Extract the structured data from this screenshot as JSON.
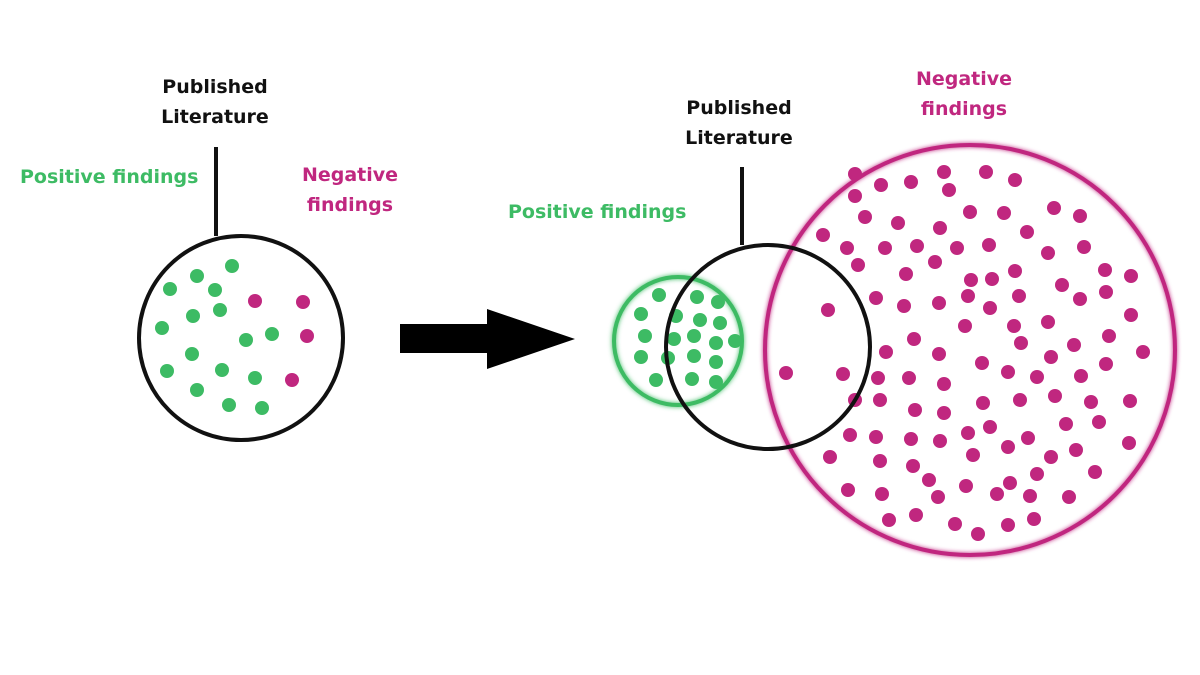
{
  "colors": {
    "positive": "#3dbb64",
    "negative": "#c0277f",
    "published_outline": "#111111",
    "arrow": "#000000",
    "background": "#ffffff"
  },
  "before": {
    "published_label": [
      "Published",
      "Literature"
    ],
    "positive_label": "Positive findings",
    "negative_label": [
      "Negative",
      "findings"
    ],
    "positive_dot_count": 16,
    "negative_dot_count": 4
  },
  "after": {
    "published_label": [
      "Published",
      "Literature"
    ],
    "positive_label": "Positive findings",
    "negative_label": [
      "Negative",
      "findings"
    ]
  }
}
